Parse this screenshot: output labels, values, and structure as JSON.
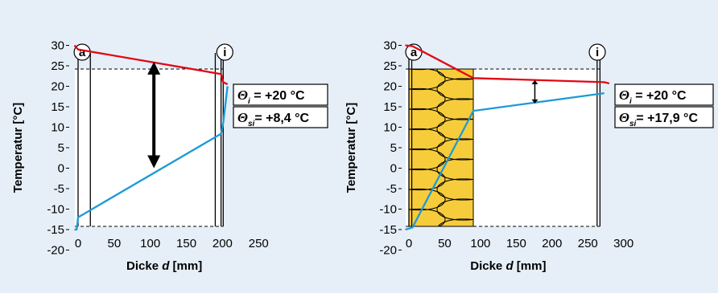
{
  "colors": {
    "background": "#e6eff8",
    "interior_line": "#e30613",
    "exterior_line": "#1e9ad6",
    "insulation": "#f7cc3a"
  },
  "chart_data": [
    {
      "type": "line",
      "xlabel_prefix": "Dicke ",
      "xlabel_var": "d",
      "xlabel_suffix": " [mm]",
      "ylabel": "Temperatur [°C]",
      "xlim": [
        -10,
        250
      ],
      "ylim": [
        -20,
        33
      ],
      "xticks": [
        0,
        50,
        100,
        150,
        200,
        250
      ],
      "yticks": [
        30,
        25,
        20,
        15,
        10,
        5,
        0,
        -5,
        -10,
        -15,
        -20
      ],
      "surface_markers": [
        {
          "label": "a",
          "x": -1
        },
        {
          "label": "i",
          "x": 201
        }
      ],
      "wall_lines_x": [
        0,
        17,
        190,
        198,
        201
      ],
      "series": [
        {
          "color_key": "interior_line",
          "x": [
            -5,
            0,
            198,
            201,
            207
          ],
          "y": [
            30,
            29,
            23,
            21,
            20.5
          ]
        },
        {
          "color_key": "exterior_line",
          "x": [
            -5,
            -2,
            0,
            198,
            201,
            207
          ],
          "y": [
            -15,
            -15,
            -12,
            8.4,
            11,
            20
          ]
        }
      ],
      "arrow": {
        "x": 105,
        "y_top": 26,
        "y_bottom": 0
      },
      "insulation": null,
      "boxes": [
        {
          "symbol": "Θ",
          "sub": "i",
          "text": " = +20 °C"
        },
        {
          "symbol": "Θ",
          "sub": "si",
          "text": "= +8,4 °C"
        }
      ]
    },
    {
      "type": "line",
      "xlabel_prefix": "Dicke ",
      "xlabel_var": "d",
      "xlabel_suffix": " [mm]",
      "ylabel": "Temperatur [°C]",
      "xlim": [
        -10,
        300
      ],
      "ylim": [
        -20,
        33
      ],
      "xticks": [
        0,
        50,
        100,
        150,
        200,
        250,
        300
      ],
      "yticks": [
        30,
        25,
        20,
        15,
        10,
        5,
        0,
        -5,
        -10,
        -15,
        -20
      ],
      "surface_markers": [
        {
          "label": "a",
          "x": 0
        },
        {
          "label": "i",
          "x": 261
        }
      ],
      "wall_lines_x": [
        0,
        4,
        263,
        267
      ],
      "series": [
        {
          "color_key": "interior_line",
          "x": [
            -5,
            5,
            90,
            273,
            280
          ],
          "y": [
            30,
            29.8,
            22,
            21,
            20.7
          ]
        },
        {
          "color_key": "exterior_line",
          "x": [
            -5,
            5,
            90,
            273
          ],
          "y": [
            -15,
            -14.5,
            14,
            18.3
          ]
        }
      ],
      "arrow": {
        "x": 176,
        "y_top": 21.5,
        "y_bottom": 15.8
      },
      "insulation": {
        "x_start": 0,
        "x_end": 90
      },
      "boxes": [
        {
          "symbol": "Θ",
          "sub": "i",
          "text": " = +20 °C"
        },
        {
          "symbol": "Θ",
          "sub": "si",
          "text": "= +17,9 °C"
        }
      ]
    }
  ]
}
